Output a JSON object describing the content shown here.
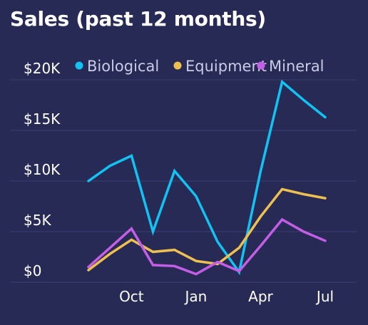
{
  "title": "Sales (past 12 months)",
  "colors": {
    "background": "#282a56",
    "grid": "#3d4070",
    "axis_text": "#ffffff",
    "legend_text": "#c9cbe6"
  },
  "chart_data": {
    "type": "line",
    "title": "Sales (past 12 months)",
    "xlabel": "",
    "ylabel": "",
    "ylim": [
      0,
      20000
    ],
    "yticks": [
      0,
      5000,
      10000,
      15000,
      20000
    ],
    "ytick_labels": [
      "$0",
      "$5K",
      "$10K",
      "$15K",
      "$20K"
    ],
    "xticks": [
      "Oct",
      "Jan",
      "Apr",
      "Jul"
    ],
    "xtick_positions": [
      2,
      5,
      8,
      11
    ],
    "x": [
      0,
      1,
      2,
      3,
      4,
      5,
      6,
      7,
      8,
      9,
      10,
      11
    ],
    "grid": true,
    "legend_position": "top",
    "series": [
      {
        "name": "Biological",
        "color": "#12c2f2",
        "values": [
          10000,
          11500,
          12500,
          5000,
          11000,
          8500,
          4000,
          1000,
          11000,
          19800,
          18000,
          16300
        ]
      },
      {
        "name": "Equipment",
        "color": "#eec050",
        "values": [
          1200,
          2800,
          4200,
          3000,
          3200,
          2100,
          1800,
          3400,
          6500,
          9200,
          8700,
          8300
        ]
      },
      {
        "name": "Mineral",
        "color": "#c45ee7",
        "values": [
          1500,
          3400,
          5300,
          1700,
          1600,
          800,
          2000,
          1100,
          3600,
          6200,
          5000,
          4100
        ]
      }
    ]
  }
}
